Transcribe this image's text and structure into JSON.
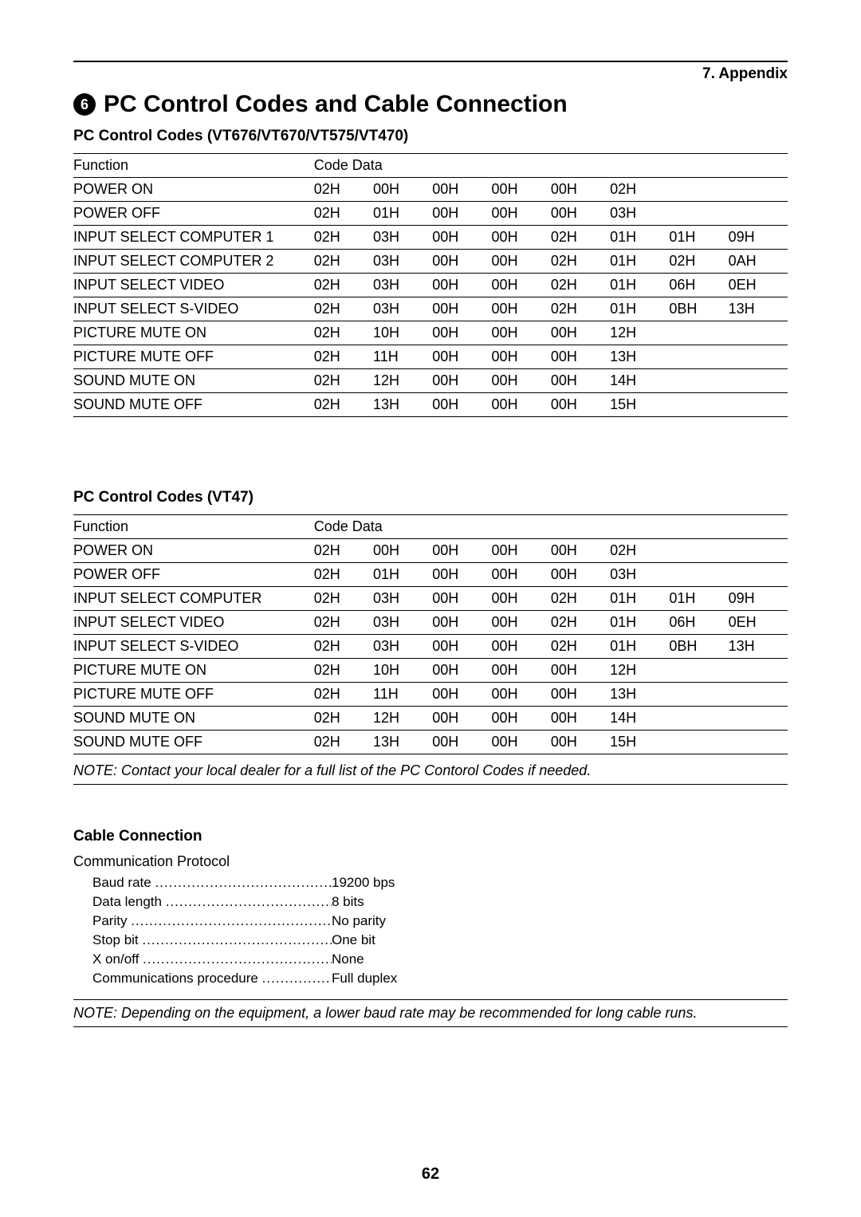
{
  "header": {
    "appendix": "7. Appendix",
    "section_number": "6",
    "section_title": "PC Control Codes and Cable Connection"
  },
  "table1": {
    "heading": "PC Control Codes (VT676/VT670/VT575/VT470)",
    "col_function": "Function",
    "col_codedata": "Code Data",
    "rows": [
      {
        "fn": "POWER ON",
        "codes": [
          "02H",
          "00H",
          "00H",
          "00H",
          "00H",
          "02H",
          "",
          ""
        ]
      },
      {
        "fn": "POWER OFF",
        "codes": [
          "02H",
          "01H",
          "00H",
          "00H",
          "00H",
          "03H",
          "",
          ""
        ]
      },
      {
        "fn": "INPUT SELECT COMPUTER 1",
        "codes": [
          "02H",
          "03H",
          "00H",
          "00H",
          "02H",
          "01H",
          "01H",
          "09H"
        ]
      },
      {
        "fn": "INPUT SELECT COMPUTER 2",
        "codes": [
          "02H",
          "03H",
          "00H",
          "00H",
          "02H",
          "01H",
          "02H",
          "0AH"
        ]
      },
      {
        "fn": "INPUT SELECT VIDEO",
        "codes": [
          "02H",
          "03H",
          "00H",
          "00H",
          "02H",
          "01H",
          "06H",
          "0EH"
        ]
      },
      {
        "fn": "INPUT SELECT S-VIDEO",
        "codes": [
          "02H",
          "03H",
          "00H",
          "00H",
          "02H",
          "01H",
          "0BH",
          "13H"
        ]
      },
      {
        "fn": "PICTURE MUTE ON",
        "codes": [
          "02H",
          "10H",
          "00H",
          "00H",
          "00H",
          "12H",
          "",
          ""
        ]
      },
      {
        "fn": "PICTURE MUTE OFF",
        "codes": [
          "02H",
          "11H",
          "00H",
          "00H",
          "00H",
          "13H",
          "",
          ""
        ]
      },
      {
        "fn": "SOUND MUTE ON",
        "codes": [
          "02H",
          "12H",
          "00H",
          "00H",
          "00H",
          "14H",
          "",
          ""
        ]
      },
      {
        "fn": "SOUND MUTE OFF",
        "codes": [
          "02H",
          "13H",
          "00H",
          "00H",
          "00H",
          "15H",
          "",
          ""
        ]
      }
    ]
  },
  "table2": {
    "heading": "PC Control Codes (VT47)",
    "col_function": "Function",
    "col_codedata": "Code Data",
    "rows": [
      {
        "fn": "POWER ON",
        "codes": [
          "02H",
          "00H",
          "00H",
          "00H",
          "00H",
          "02H",
          "",
          ""
        ]
      },
      {
        "fn": "POWER OFF",
        "codes": [
          "02H",
          "01H",
          "00H",
          "00H",
          "00H",
          "03H",
          "",
          ""
        ]
      },
      {
        "fn": "INPUT SELECT COMPUTER",
        "codes": [
          "02H",
          "03H",
          "00H",
          "00H",
          "02H",
          "01H",
          "01H",
          "09H"
        ]
      },
      {
        "fn": "INPUT SELECT VIDEO",
        "codes": [
          "02H",
          "03H",
          "00H",
          "00H",
          "02H",
          "01H",
          "06H",
          "0EH"
        ]
      },
      {
        "fn": "INPUT SELECT S-VIDEO",
        "codes": [
          "02H",
          "03H",
          "00H",
          "00H",
          "02H",
          "01H",
          "0BH",
          "13H"
        ]
      },
      {
        "fn": "PICTURE MUTE ON",
        "codes": [
          "02H",
          "10H",
          "00H",
          "00H",
          "00H",
          "12H",
          "",
          ""
        ]
      },
      {
        "fn": "PICTURE MUTE OFF",
        "codes": [
          "02H",
          "11H",
          "00H",
          "00H",
          "00H",
          "13H",
          "",
          ""
        ]
      },
      {
        "fn": "SOUND MUTE ON",
        "codes": [
          "02H",
          "12H",
          "00H",
          "00H",
          "00H",
          "14H",
          "",
          ""
        ]
      },
      {
        "fn": "SOUND MUTE OFF",
        "codes": [
          "02H",
          "13H",
          "00H",
          "00H",
          "00H",
          "15H",
          "",
          ""
        ]
      }
    ],
    "note": "NOTE: Contact your local dealer for a full list of the PC Contorol Codes if needed."
  },
  "cable": {
    "heading": "Cable Connection",
    "subheading": "Communication Protocol",
    "rows": [
      {
        "label": "Baud rate",
        "value": "19200 bps"
      },
      {
        "label": "Data length",
        "value": "8 bits"
      },
      {
        "label": "Parity",
        "value": "No parity"
      },
      {
        "label": "Stop bit",
        "value": "One bit"
      },
      {
        "label": "X on/off",
        "value": "None"
      },
      {
        "label": "Communications procedure",
        "value": "Full duplex"
      }
    ],
    "note": "NOTE: Depending on the equipment, a lower baud rate may be recommended for long cable runs."
  },
  "page_number": "62"
}
